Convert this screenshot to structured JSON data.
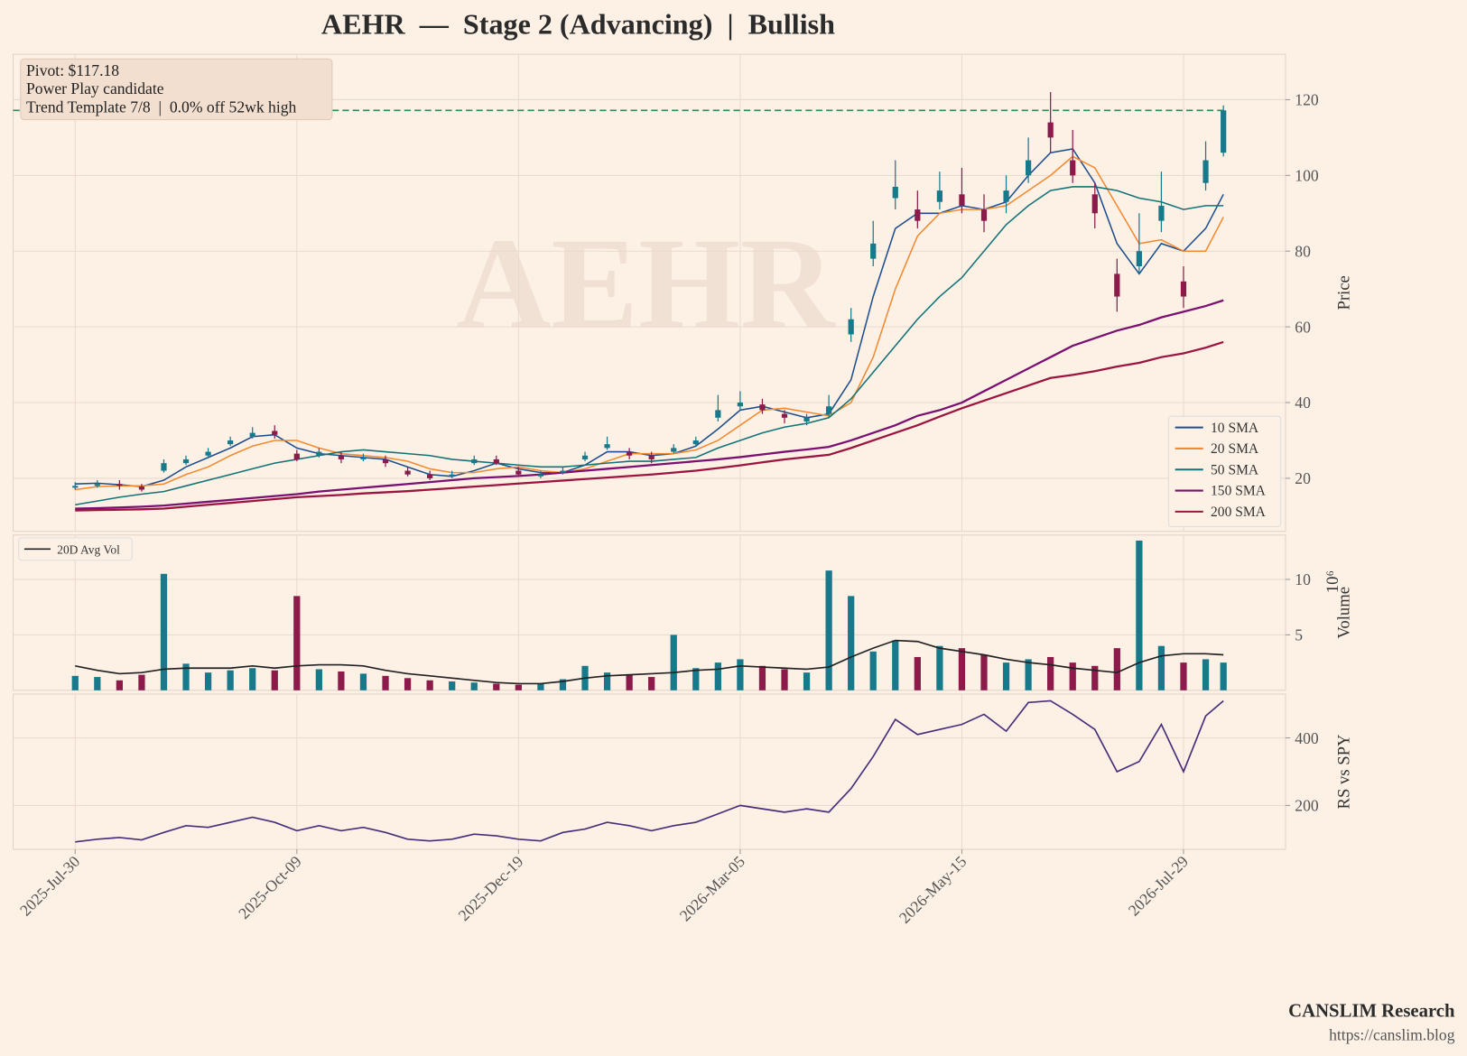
{
  "chart_data": [
    {
      "type": "candlestick",
      "title": "AEHR  —  Stage 2 (Advancing)  |  Bullish",
      "watermark": "AEHR",
      "ylabel": "Price",
      "annotation": [
        "Pivot: $117.18",
        "Power Play candidate",
        "Trend Template 7/8  |  0.0% off 52wk high"
      ],
      "pivot": 117.18,
      "pivot_color": "#2e8b57",
      "up_color": "#17798a",
      "down_color": "#8c1b4b",
      "grid": true,
      "legend": "lower right",
      "xlim": [
        -14,
        273
      ],
      "ylim": [
        6,
        132
      ],
      "yticks": [
        20,
        40,
        60,
        80,
        100,
        120
      ],
      "x": [
        0,
        5,
        10,
        15,
        20,
        25,
        30,
        35,
        40,
        45,
        50,
        55,
        60,
        65,
        70,
        75,
        80,
        85,
        90,
        95,
        100,
        105,
        110,
        115,
        120,
        125,
        130,
        135,
        140,
        145,
        150,
        155,
        160,
        165,
        170,
        175,
        180,
        185,
        190,
        195,
        200,
        205,
        210,
        215,
        220,
        225,
        230,
        235,
        240,
        245,
        250,
        255,
        259
      ],
      "open": [
        17.5,
        18,
        18.5,
        17.8,
        22,
        24,
        26,
        29,
        31,
        32.5,
        26.5,
        26,
        26,
        25,
        25,
        22,
        21,
        20.5,
        24,
        25,
        22,
        20.5,
        21.5,
        25,
        28,
        27,
        26,
        27,
        29,
        36,
        39,
        39.5,
        37,
        35,
        37,
        58,
        78,
        94,
        91,
        93,
        95,
        91,
        93,
        100,
        114,
        104,
        95,
        74,
        76,
        88,
        72,
        98,
        106
      ],
      "high": [
        19,
        19.5,
        19.5,
        18.5,
        25,
        26,
        28,
        31,
        33.5,
        34,
        27.5,
        28,
        27,
        26.5,
        26,
        23,
        22,
        22,
        26,
        26,
        23,
        22,
        23,
        27,
        31,
        28,
        27,
        29,
        31,
        42,
        43,
        41,
        38,
        37,
        42,
        65,
        88,
        104,
        96,
        101,
        102,
        95,
        100,
        110,
        122,
        112,
        98,
        78,
        90,
        101,
        76,
        109,
        118.5
      ],
      "low": [
        17,
        17.5,
        17,
        16.5,
        21.5,
        23.5,
        25.5,
        28.5,
        30.5,
        30.5,
        24.5,
        25.5,
        24,
        24.5,
        23,
        20.5,
        19.5,
        20,
        23.5,
        23.5,
        20.5,
        20,
        21,
        24.5,
        27.5,
        25,
        24,
        26.5,
        28.5,
        35,
        38,
        37,
        34.5,
        34,
        36,
        56,
        76,
        91,
        86,
        91,
        90,
        85,
        90,
        98,
        106,
        98,
        86,
        64,
        74,
        85,
        65,
        96,
        105
      ],
      "close": [
        18,
        18.5,
        18,
        17,
        24,
        25,
        27,
        30,
        32,
        31.5,
        25,
        27,
        25,
        25.5,
        24,
        21,
        20,
        21,
        25,
        24,
        21,
        21,
        22,
        26,
        29,
        26,
        25,
        28,
        30,
        38,
        40,
        38,
        36,
        36,
        39,
        62,
        82,
        97,
        88,
        96,
        92,
        88,
        96,
        104,
        110,
        100,
        90,
        68,
        80,
        92,
        68,
        104,
        117.18
      ],
      "series": [
        {
          "name": "10 SMA",
          "color": "#1f4e8c",
          "values": [
            18.5,
            18.7,
            18.3,
            17.8,
            19.5,
            23,
            25.5,
            28,
            31,
            31.5,
            28,
            26.5,
            26,
            25.5,
            25,
            23,
            21,
            20.5,
            22,
            24,
            22.5,
            21.5,
            21.5,
            23.5,
            27,
            27,
            26,
            26.5,
            28.5,
            33,
            38,
            39,
            37.5,
            36,
            37,
            46,
            68,
            86,
            90,
            90,
            92,
            91,
            93,
            100,
            106,
            107,
            98,
            82,
            74,
            82,
            80,
            86,
            95
          ]
        },
        {
          "name": "20 SMA",
          "color": "#f28a30",
          "values": [
            17,
            17.8,
            18,
            18,
            18.5,
            21,
            23,
            26,
            28.5,
            30,
            30,
            28,
            26.5,
            26,
            25.5,
            24.5,
            22.5,
            21.5,
            21.5,
            22.5,
            23,
            22,
            21.5,
            22.5,
            24.5,
            26.5,
            26.5,
            26.5,
            27.5,
            30,
            34,
            38,
            38.5,
            37.5,
            36.5,
            40,
            52,
            70,
            84,
            90,
            91,
            91,
            92,
            96,
            100,
            105,
            102,
            92,
            82,
            83,
            80,
            80,
            89
          ]
        },
        {
          "name": "50 SMA",
          "color": "#137277",
          "values": [
            13,
            14,
            15,
            15.8,
            16.5,
            18,
            19.5,
            21,
            22.5,
            24,
            25,
            26,
            27,
            27.5,
            27,
            26.5,
            26,
            25,
            24.5,
            24,
            23.5,
            23,
            23,
            23.5,
            24,
            24.5,
            24.5,
            25,
            25.5,
            28,
            30,
            32,
            33.5,
            34.5,
            36,
            41,
            48,
            55,
            62,
            68,
            73,
            80,
            87,
            92,
            96,
            97,
            97,
            96,
            94,
            93,
            91,
            92,
            92
          ]
        },
        {
          "name": "150 SMA",
          "color": "#7a1070",
          "values": [
            12,
            12.1,
            12.3,
            12.5,
            12.8,
            13.3,
            13.8,
            14.3,
            14.8,
            15.3,
            15.8,
            16.5,
            17,
            17.5,
            18,
            18.5,
            19,
            19.5,
            20,
            20.3,
            20.6,
            21,
            21.5,
            22,
            22.5,
            23,
            23.5,
            24,
            24.5,
            25,
            25.6,
            26.3,
            27,
            27.6,
            28.3,
            30,
            32,
            34,
            36.5,
            38,
            40,
            43,
            46,
            49,
            52,
            55,
            57,
            59,
            60.5,
            62.5,
            64,
            65.5,
            67
          ]
        },
        {
          "name": "200 SMA",
          "color": "#9b1540",
          "values": [
            11.5,
            11.6,
            11.7,
            11.8,
            12,
            12.5,
            13,
            13.5,
            14,
            14.5,
            15,
            15.3,
            15.6,
            16,
            16.3,
            16.6,
            17,
            17.4,
            17.8,
            18.2,
            18.6,
            19,
            19.4,
            19.8,
            20.2,
            20.6,
            21,
            21.5,
            22,
            22.7,
            23.4,
            24.2,
            25,
            25.6,
            26.2,
            28,
            30,
            32,
            34,
            36.3,
            38.5,
            40.5,
            42.5,
            44.5,
            46.5,
            47.3,
            48.3,
            49.5,
            50.5,
            52,
            53,
            54.5,
            56
          ]
        }
      ]
    },
    {
      "type": "bar",
      "ylabel": "Volume",
      "y_offset_label": "10⁶",
      "grid": true,
      "legend": "upper left",
      "xlim": [
        -14,
        273
      ],
      "ylim": [
        0,
        14
      ],
      "yticks": [
        5,
        10
      ],
      "x": [
        0,
        5,
        10,
        15,
        20,
        25,
        30,
        35,
        40,
        45,
        50,
        55,
        60,
        65,
        70,
        75,
        80,
        85,
        90,
        95,
        100,
        105,
        110,
        115,
        120,
        125,
        130,
        135,
        140,
        145,
        150,
        155,
        160,
        165,
        170,
        175,
        180,
        185,
        190,
        195,
        200,
        205,
        210,
        215,
        220,
        225,
        230,
        235,
        240,
        245,
        250,
        255,
        259
      ],
      "values": [
        1.3,
        1.2,
        0.9,
        1.4,
        10.5,
        2.4,
        1.6,
        1.8,
        2,
        1.8,
        8.5,
        1.9,
        1.7,
        1.5,
        1.3,
        1.1,
        0.9,
        0.8,
        0.7,
        0.6,
        0.5,
        0.6,
        1,
        2.2,
        1.6,
        1.4,
        1.2,
        5,
        2,
        2.5,
        2.8,
        2.2,
        1.9,
        1.6,
        10.8,
        8.5,
        3.5,
        4.5,
        3,
        4,
        3.8,
        3.2,
        2.5,
        2.8,
        3,
        2.5,
        2.2,
        3.8,
        13.5,
        4,
        2.5,
        2.8,
        2.5
      ],
      "series": [
        {
          "name": "20D Avg Vol",
          "color": "#222222",
          "values": [
            2.2,
            1.8,
            1.5,
            1.6,
            1.9,
            2,
            2,
            2,
            2.2,
            2,
            2.2,
            2.3,
            2.3,
            2.2,
            1.8,
            1.5,
            1.3,
            1.1,
            0.9,
            0.7,
            0.6,
            0.6,
            0.8,
            1.1,
            1.3,
            1.4,
            1.5,
            1.6,
            1.8,
            1.9,
            2.2,
            2.1,
            2,
            1.9,
            2.1,
            3,
            3.8,
            4.5,
            4.4,
            3.8,
            3.5,
            3.2,
            2.8,
            2.5,
            2.3,
            2,
            1.8,
            1.6,
            2.5,
            3.1,
            3.3,
            3.3,
            3.2
          ]
        }
      ]
    },
    {
      "type": "line",
      "ylabel": "RS vs SPY",
      "color": "#4b2c7a",
      "grid": true,
      "xlim": [
        -14,
        273
      ],
      "xticks": [
        {
          "value": 0,
          "label": "2025-Jul-30"
        },
        {
          "value": 50,
          "label": "2025-Oct-09"
        },
        {
          "value": 100,
          "label": "2025-Dec-19"
        },
        {
          "value": 150,
          "label": "2026-Mar-05"
        },
        {
          "value": 200,
          "label": "2026-May-15"
        },
        {
          "value": 250,
          "label": "2026-Jul-29"
        }
      ],
      "ylim": [
        70,
        530
      ],
      "yticks": [
        200,
        400
      ],
      "x": [
        0,
        5,
        10,
        15,
        20,
        25,
        30,
        35,
        40,
        45,
        50,
        55,
        60,
        65,
        70,
        75,
        80,
        85,
        90,
        95,
        100,
        105,
        110,
        115,
        120,
        125,
        130,
        135,
        140,
        145,
        150,
        155,
        160,
        165,
        170,
        175,
        180,
        185,
        190,
        195,
        200,
        205,
        210,
        215,
        220,
        225,
        230,
        235,
        240,
        245,
        250,
        255,
        259
      ],
      "values": [
        92,
        100,
        105,
        98,
        120,
        140,
        135,
        150,
        165,
        150,
        125,
        140,
        125,
        135,
        120,
        100,
        95,
        100,
        115,
        110,
        100,
        95,
        120,
        130,
        150,
        140,
        125,
        140,
        150,
        175,
        200,
        190,
        180,
        190,
        180,
        250,
        345,
        455,
        410,
        425,
        440,
        470,
        420,
        505,
        510,
        470,
        425,
        300,
        330,
        440,
        300,
        465,
        510
      ]
    }
  ],
  "footer": {
    "brand": "CANSLIM Research",
    "url": "https://canslim.blog"
  }
}
